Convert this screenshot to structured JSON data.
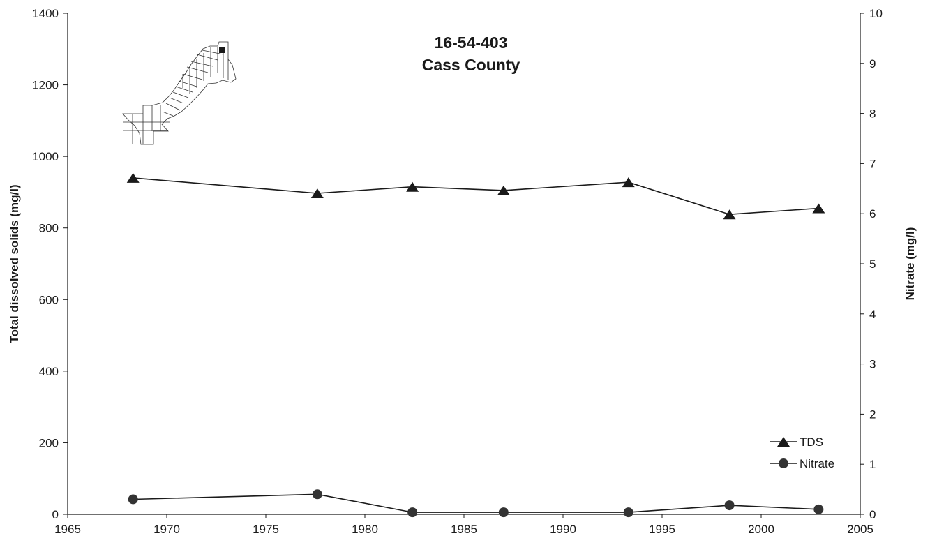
{
  "chart_data": {
    "type": "line",
    "title": "16-54-403",
    "subtitle": "Cass County",
    "xlabel": "",
    "ylabel": "Total dissolved solids (mg/l)",
    "y2label": "Nitrate (mg/l)",
    "xlim": [
      1965,
      2005
    ],
    "ylim": [
      0,
      1400
    ],
    "y2lim": [
      0,
      10
    ],
    "xticks": [
      1965,
      1970,
      1975,
      1980,
      1985,
      1990,
      1995,
      2000,
      2005
    ],
    "yticks": [
      0,
      200,
      400,
      600,
      800,
      1000,
      1200,
      1400
    ],
    "y2ticks": [
      0,
      1,
      2,
      3,
      4,
      5,
      6,
      7,
      8,
      9,
      10
    ],
    "grid": false,
    "legend_position": "bottom-right",
    "series": [
      {
        "name": "TDS",
        "axis": "left",
        "marker": "triangle",
        "color": "#1a1a1a",
        "x": [
          1968.3,
          1977.6,
          1982.4,
          1987.0,
          1993.3,
          1998.4,
          2002.9
        ],
        "values": [
          940,
          897,
          915,
          905,
          928,
          838,
          855
        ]
      },
      {
        "name": "Nitrate",
        "axis": "right",
        "marker": "circle",
        "color": "#1a1a1a",
        "x": [
          1968.3,
          1977.6,
          1982.4,
          1987.0,
          1993.3,
          1998.4,
          2002.9
        ],
        "values": [
          0.3,
          0.4,
          0.04,
          0.04,
          0.04,
          0.18,
          0.1
        ]
      }
    ],
    "inset": {
      "icon": "texas-county-map-icon"
    }
  }
}
